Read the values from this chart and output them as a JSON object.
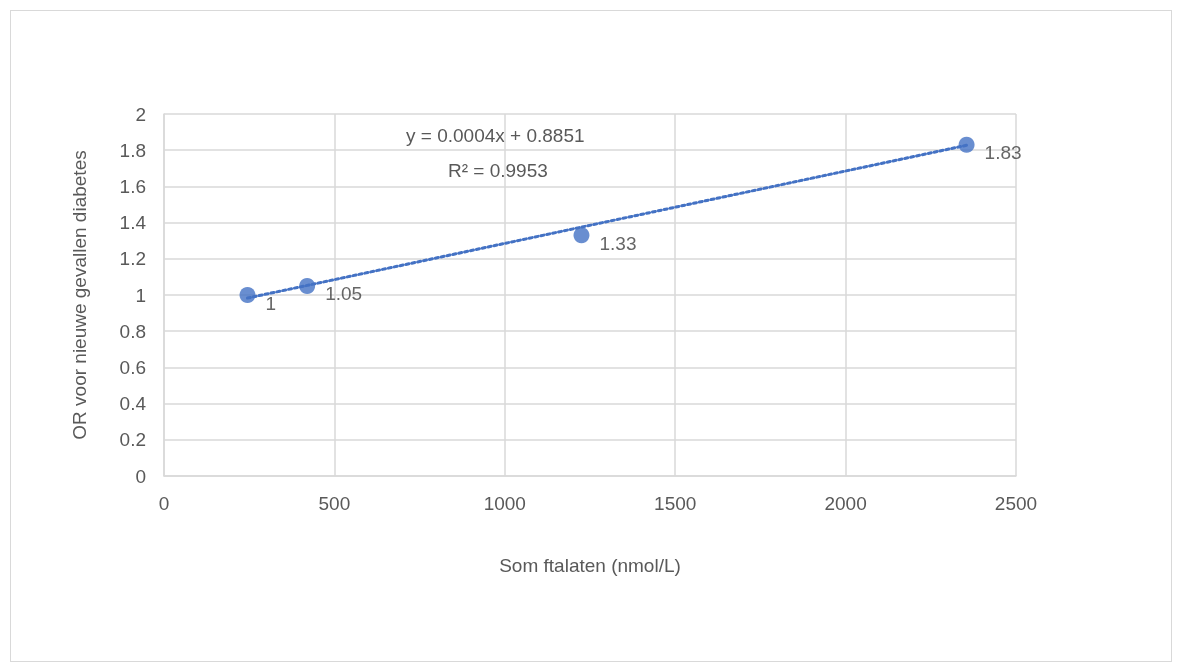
{
  "chart_data": {
    "type": "scatter",
    "xlabel": "Som ftalaten (nmol/L)",
    "ylabel": "OR voor nieuwe gevallen diabetes",
    "annotations": [
      "y = 0.0004x + 0.8851",
      "R² = 0.9953"
    ],
    "series": [
      {
        "color": "#4472c4",
        "x": [
          245,
          420,
          1225,
          2355
        ],
        "values": [
          1,
          1.05,
          1.33,
          1.83
        ],
        "data_labels": true,
        "marker": "circle"
      },
      {
        "type": "line",
        "color": "#4472c4",
        "x": [
          245,
          2355
        ],
        "values": [
          0.983,
          1.827
        ],
        "marker": "none",
        "line_style": "dotted"
      }
    ],
    "xlim": [
      0,
      2500
    ],
    "xticks": [
      0,
      500,
      1000,
      1500,
      2000,
      2500
    ],
    "ylim": [
      0,
      2
    ],
    "yticks": [
      0,
      0.2,
      0.4,
      0.6,
      0.8,
      1,
      1.2,
      1.4,
      1.6,
      1.8,
      2
    ],
    "grid": true
  }
}
